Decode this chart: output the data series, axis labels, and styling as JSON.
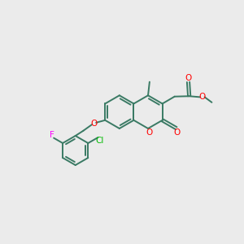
{
  "bg_color": "#ebebeb",
  "bond_color": "#3a7a64",
  "atom_colors": {
    "O": "#ff0000",
    "F": "#ff00ff",
    "Cl": "#00bb00",
    "C": "#3a7a64"
  },
  "line_width": 1.4,
  "font_size": 7.5,
  "figsize": [
    3.0,
    3.0
  ],
  "dpi": 100,
  "xlim": [
    0,
    10
  ],
  "ylim": [
    0,
    10
  ]
}
